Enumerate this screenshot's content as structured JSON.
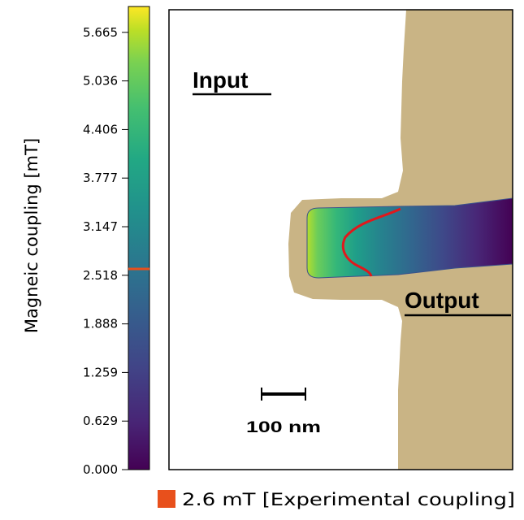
{
  "colorbar": {
    "label": "Magneic coupling [mT]",
    "min": 0.0,
    "max": 6.0,
    "ticks": [
      "0.000",
      "0.629",
      "1.259",
      "1.888",
      "2.518",
      "3.147",
      "3.777",
      "4.406",
      "5.036",
      "5.665"
    ],
    "marker_value": 2.6,
    "marker_color": "#e8501c"
  },
  "diagram": {
    "input_label": "Input",
    "output_label": "Output",
    "scalebar_label": "100 nm",
    "substrate_color": "#c9b485",
    "contour_color": "#e0181c"
  },
  "legend": {
    "text": "2.6 mT [Experimental coupling]",
    "swatch_color": "#e8501c"
  }
}
